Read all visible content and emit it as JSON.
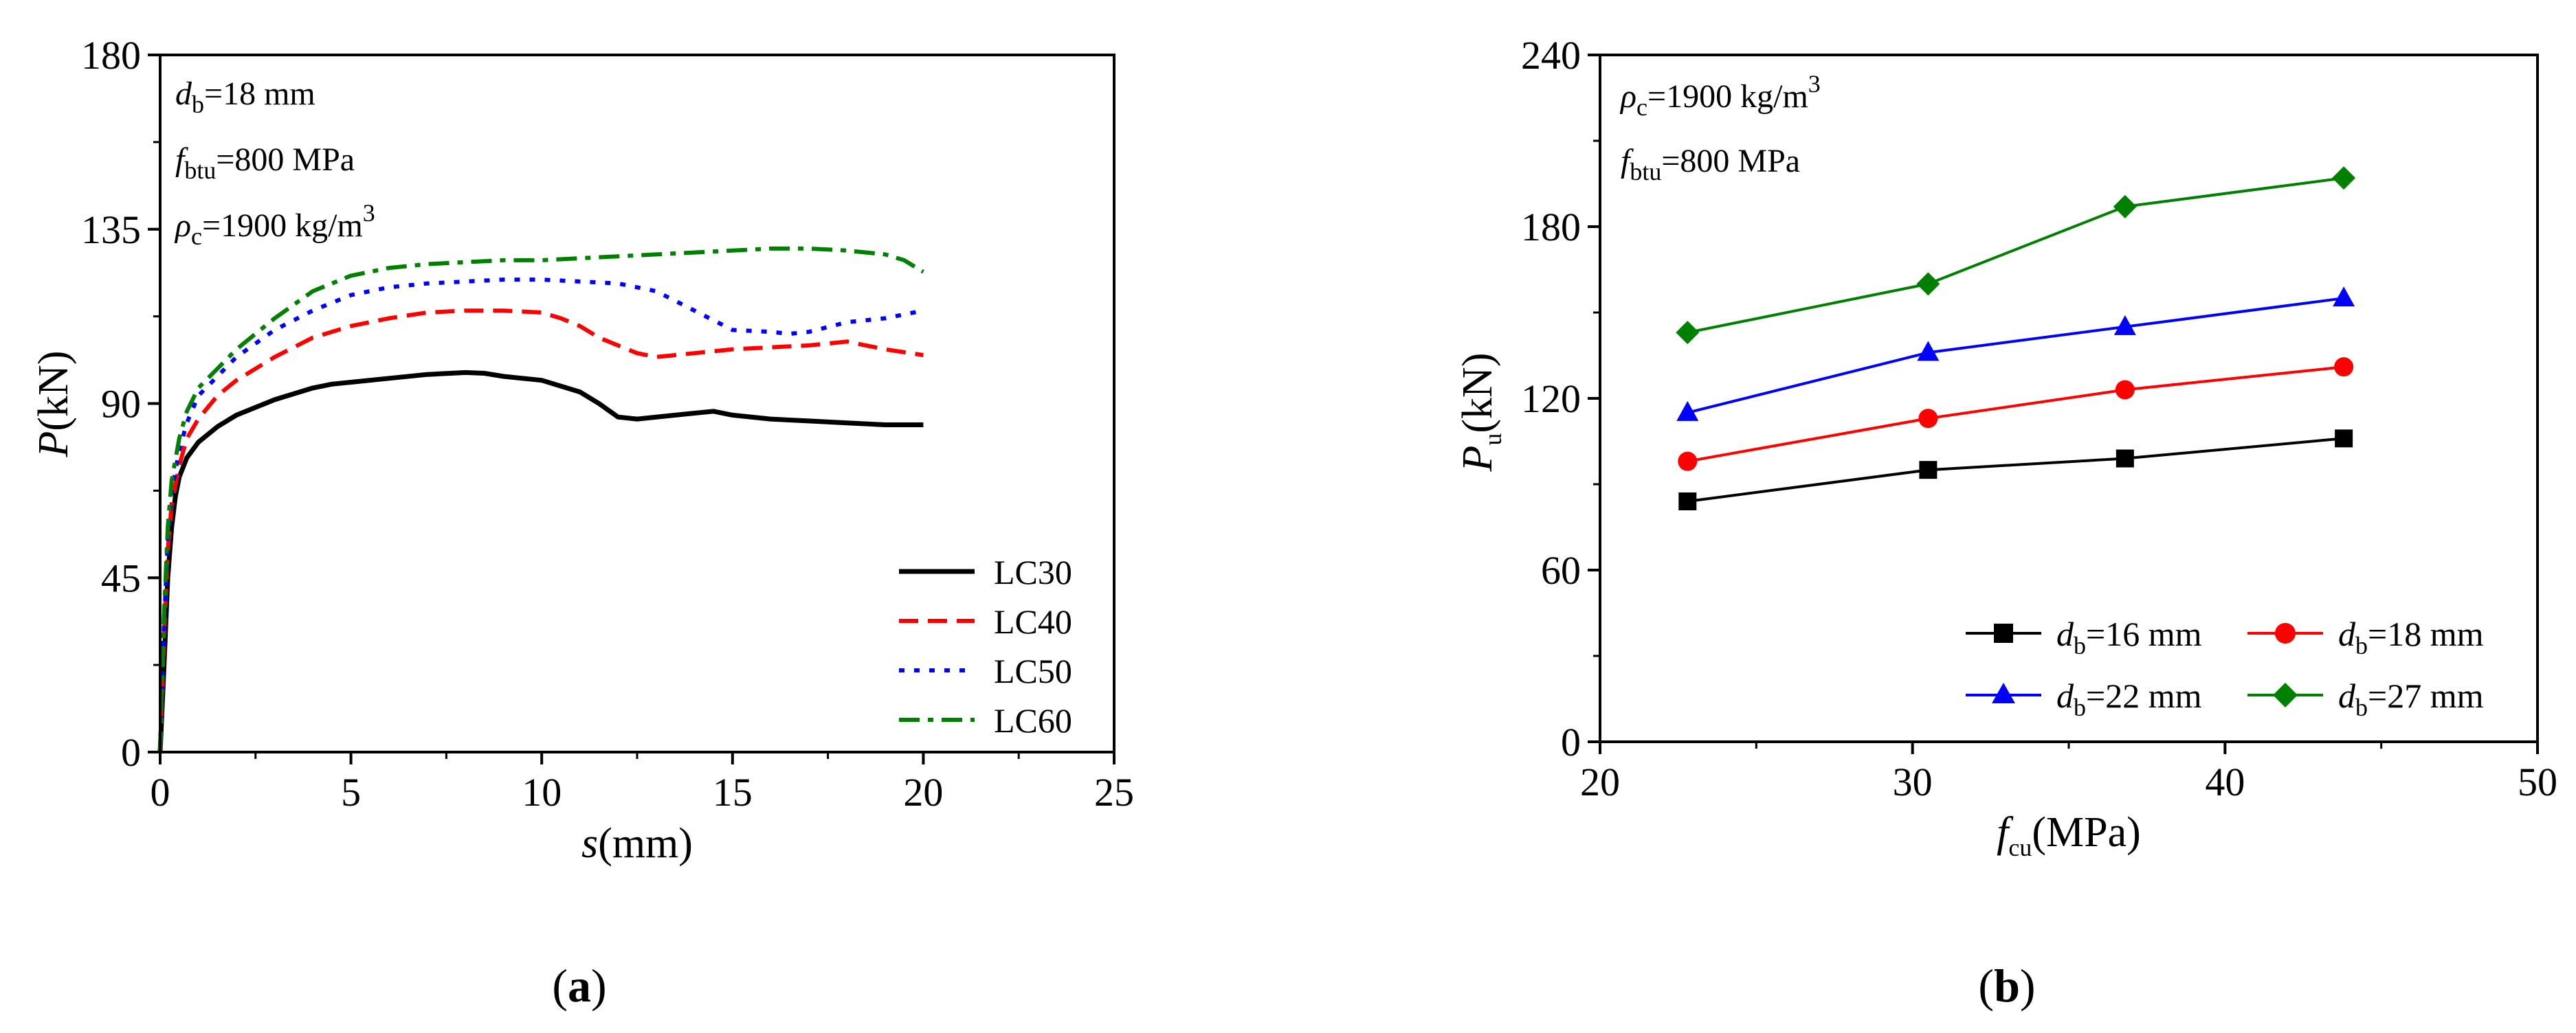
{
  "charts": [
    {
      "panel_label": "a",
      "annotations": [
        {
          "main": "d",
          "sub": "b",
          "rest": "=18 mm"
        },
        {
          "main": "f",
          "sub": "btu",
          "rest": "=800 MPa"
        },
        {
          "main": "ρ",
          "sub": "c",
          "rest": "=1900 kg/m",
          "sup": "3"
        }
      ],
      "xlabel": {
        "italic": "s",
        "rest": "(mm)"
      },
      "ylabel": {
        "italic": "P",
        "rest": "(kN)"
      }
    },
    {
      "panel_label": "b",
      "annotations": [
        {
          "main": "ρ",
          "sub": "c",
          "rest": "=1900 kg/m",
          "sup": "3"
        },
        {
          "main": "f",
          "sub": "btu",
          "rest": "=800 MPa"
        }
      ],
      "xlabel": {
        "italic": "f",
        "sub": "cu",
        "rest": "(MPa)"
      },
      "ylabel": {
        "italic": "P",
        "sub": "u",
        "rest": "(kN)"
      }
    }
  ],
  "chart_data": [
    {
      "type": "line",
      "panel": "a",
      "xlim": [
        0,
        25
      ],
      "ylim": [
        0,
        180
      ],
      "xticks": [
        "0",
        "5",
        "10",
        "15",
        "20",
        "25"
      ],
      "yticks": [
        "0",
        "45",
        "90",
        "135",
        "180"
      ],
      "series": [
        {
          "name": "LC30",
          "color": "#000000",
          "style": "solid",
          "points": [
            [
              0,
              0
            ],
            [
              0.1,
              22
            ],
            [
              0.2,
              45
            ],
            [
              0.3,
              58
            ],
            [
              0.4,
              66
            ],
            [
              0.5,
              71
            ],
            [
              0.7,
              76
            ],
            [
              1,
              80
            ],
            [
              1.5,
              84
            ],
            [
              2,
              87
            ],
            [
              3,
              91
            ],
            [
              4,
              94
            ],
            [
              4.5,
              95
            ],
            [
              5,
              95.5
            ],
            [
              6,
              96.5
            ],
            [
              7,
              97.5
            ],
            [
              8,
              98
            ],
            [
              8.5,
              97.8
            ],
            [
              9,
              97
            ],
            [
              10,
              96
            ],
            [
              11,
              93
            ],
            [
              11.5,
              90
            ],
            [
              12,
              86.5
            ],
            [
              12.5,
              86
            ],
            [
              13.5,
              87
            ],
            [
              14.5,
              88
            ],
            [
              15,
              87
            ],
            [
              16,
              86
            ],
            [
              17,
              85.5
            ],
            [
              18,
              85
            ],
            [
              19,
              84.5
            ],
            [
              20,
              84.5
            ]
          ]
        },
        {
          "name": "LC40",
          "color": "#ff0000",
          "style": "dashed",
          "points": [
            [
              0,
              0
            ],
            [
              0.1,
              30
            ],
            [
              0.2,
              52
            ],
            [
              0.3,
              64
            ],
            [
              0.5,
              74
            ],
            [
              0.7,
              81
            ],
            [
              1,
              86
            ],
            [
              1.5,
              92
            ],
            [
              2,
              96
            ],
            [
              3,
              102
            ],
            [
              4,
              107
            ],
            [
              5,
              110
            ],
            [
              6,
              112
            ],
            [
              7,
              113.5
            ],
            [
              8,
              114
            ],
            [
              9,
              114
            ],
            [
              10,
              113.5
            ],
            [
              10.5,
              112
            ],
            [
              11,
              110
            ],
            [
              11.5,
              107
            ],
            [
              12,
              105
            ],
            [
              12.5,
              103
            ],
            [
              13,
              102
            ],
            [
              14,
              103
            ],
            [
              15,
              104
            ],
            [
              16,
              104.5
            ],
            [
              17,
              105
            ],
            [
              18,
              106
            ],
            [
              19,
              104
            ],
            [
              20,
              102.5
            ]
          ]
        },
        {
          "name": "LC50",
          "color": "#0000ff",
          "style": "dotted",
          "points": [
            [
              0,
              0
            ],
            [
              0.1,
              32
            ],
            [
              0.2,
              55
            ],
            [
              0.3,
              67
            ],
            [
              0.5,
              78
            ],
            [
              0.7,
              85
            ],
            [
              1,
              92
            ],
            [
              1.5,
              97
            ],
            [
              2,
              102
            ],
            [
              3,
              109
            ],
            [
              4,
              114
            ],
            [
              5,
              118
            ],
            [
              6,
              120
            ],
            [
              7,
              121
            ],
            [
              8,
              121.5
            ],
            [
              9,
              122
            ],
            [
              10,
              122
            ],
            [
              11,
              121.5
            ],
            [
              12,
              121
            ],
            [
              13,
              119
            ],
            [
              14,
              114
            ],
            [
              15,
              109
            ],
            [
              16,
              108.5
            ],
            [
              16.5,
              108
            ],
            [
              17,
              108.5
            ],
            [
              18,
              111
            ],
            [
              19,
              112
            ],
            [
              20,
              114
            ]
          ]
        },
        {
          "name": "LC60",
          "color": "#008000",
          "style": "dashdot",
          "points": [
            [
              0,
              0
            ],
            [
              0.1,
              35
            ],
            [
              0.2,
              58
            ],
            [
              0.3,
              70
            ],
            [
              0.5,
              81
            ],
            [
              0.7,
              88
            ],
            [
              1,
              94
            ],
            [
              1.5,
              99
            ],
            [
              2,
              104
            ],
            [
              3,
              112
            ],
            [
              4,
              119
            ],
            [
              5,
              123
            ],
            [
              6,
              125
            ],
            [
              7,
              126
            ],
            [
              8,
              126.5
            ],
            [
              9,
              127
            ],
            [
              10,
              127
            ],
            [
              11,
              127.5
            ],
            [
              12,
              128
            ],
            [
              13,
              128.5
            ],
            [
              14,
              129
            ],
            [
              15,
              129.5
            ],
            [
              16,
              130
            ],
            [
              17,
              130
            ],
            [
              18,
              129.5
            ],
            [
              19,
              128.5
            ],
            [
              19.5,
              127
            ],
            [
              20,
              124
            ]
          ]
        }
      ]
    },
    {
      "type": "line",
      "panel": "b",
      "xlim": [
        20,
        50
      ],
      "ylim": [
        0,
        240
      ],
      "xticks": [
        "20",
        "30",
        "40",
        "50"
      ],
      "yticks": [
        "0",
        "60",
        "120",
        "180",
        "240"
      ],
      "x": [
        22.8,
        30.5,
        36.8,
        43.8
      ],
      "series": [
        {
          "name": "d_b=16 mm",
          "legend_sub": "b",
          "legend_rest": "=16 mm",
          "color": "#000000",
          "marker": "square",
          "values": [
            84,
            95,
            99,
            106
          ]
        },
        {
          "name": "d_b=18 mm",
          "legend_sub": "b",
          "legend_rest": "=18 mm",
          "color": "#ff0000",
          "marker": "circle",
          "values": [
            98,
            113,
            123,
            131
          ]
        },
        {
          "name": "d_b=22 mm",
          "legend_sub": "b",
          "legend_rest": "=22 mm",
          "color": "#0000ff",
          "marker": "triangle",
          "values": [
            115,
            136,
            145,
            155
          ]
        },
        {
          "name": "d_b=27 mm",
          "legend_sub": "b",
          "legend_rest": "=27 mm",
          "color": "#008000",
          "marker": "diamond",
          "values": [
            143,
            160,
            187,
            197
          ]
        }
      ]
    }
  ]
}
